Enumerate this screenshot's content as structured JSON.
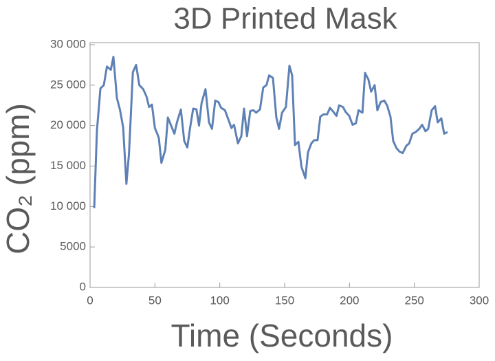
{
  "chart_data": {
    "type": "line",
    "title": "3D Printed Mask",
    "x_label": "Time (Seconds)",
    "y_label": "CO₂ (ppm)",
    "xlim": [
      0,
      300
    ],
    "xticks": [
      0,
      50,
      100,
      150,
      200,
      250,
      300
    ],
    "ylim": [
      0,
      30000
    ],
    "yticks": [
      0,
      5000,
      {
        "value": 10000,
        "label": "10 000"
      },
      {
        "value": 15000,
        "label": "15 000"
      },
      {
        "value": 20000,
        "label": "20 000"
      },
      {
        "value": 25000,
        "label": "25 000"
      },
      {
        "value": 30000,
        "label": "30 000"
      }
    ],
    "grid": false,
    "series": [
      {
        "name": "CO₂",
        "color": "#5e81b5",
        "x": [
          3.2,
          5.3,
          8,
          10.6,
          13,
          16,
          18,
          20.7,
          23,
          25.5,
          28,
          30,
          33,
          35.5,
          38,
          41,
          43.5,
          45.5,
          47.7,
          50,
          53,
          55,
          58,
          60,
          62.5,
          65,
          67,
          70,
          72.6,
          75,
          77,
          79.5,
          82,
          84,
          86,
          89,
          91.7,
          94,
          96.5,
          99,
          101,
          104,
          106.5,
          109,
          111,
          114,
          116.6,
          118.7,
          121,
          123.5,
          126,
          128,
          131,
          133.5,
          136,
          138,
          141,
          143.6,
          145.7,
          148,
          151,
          153.7,
          155.8,
          158,
          160.6,
          163,
          166,
          168,
          170.6,
          172.8,
          175.4,
          177.5,
          180,
          182.8,
          185,
          187.6,
          190,
          192,
          195,
          197,
          199.8,
          202.4,
          205,
          207,
          210,
          212,
          214.6,
          216.7,
          219.4,
          221.5,
          224,
          226.8,
          229,
          231.6,
          233.7,
          236.3,
          238.5,
          241,
          243.8,
          246,
          248.5,
          251,
          253.8,
          256,
          258.6,
          260.7,
          263.4,
          266,
          268,
          270.8,
          273,
          275.6
        ],
        "values": [
          9800,
          19400,
          24600,
          25000,
          27300,
          26900,
          28500,
          23400,
          22000,
          19800,
          12800,
          16500,
          26600,
          27500,
          25000,
          24500,
          23600,
          22300,
          22600,
          19700,
          18500,
          15400,
          17000,
          21000,
          20000,
          19000,
          20400,
          22000,
          18100,
          17300,
          19600,
          22100,
          22000,
          20000,
          22800,
          24500,
          20400,
          19600,
          23100,
          22900,
          22200,
          21900,
          20800,
          19700,
          20100,
          17800,
          18700,
          22100,
          18700,
          21800,
          21900,
          21600,
          22000,
          24700,
          25000,
          26200,
          25900,
          21000,
          19600,
          21600,
          22300,
          27400,
          26200,
          17600,
          18000,
          14900,
          13500,
          16700,
          17800,
          18200,
          18200,
          21100,
          21400,
          21400,
          22200,
          21700,
          21200,
          22500,
          22300,
          21700,
          21200,
          20100,
          20300,
          21900,
          21600,
          26500,
          25700,
          24200,
          25000,
          21900,
          22900,
          23100,
          22500,
          21100,
          18100,
          17200,
          16800,
          16600,
          17500,
          17800,
          19000,
          19200,
          19600,
          20100,
          19300,
          19600,
          21900,
          22400,
          20400,
          20900,
          19000,
          19200
        ]
      }
    ]
  }
}
